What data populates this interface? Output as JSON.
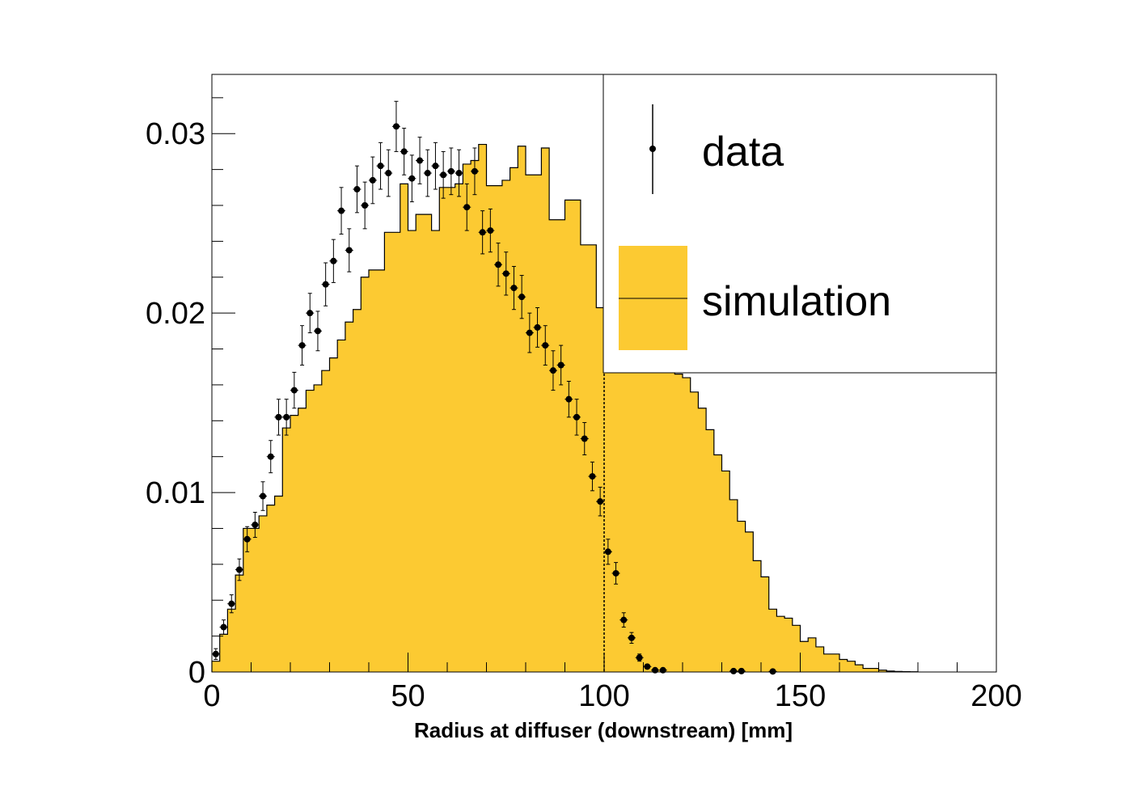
{
  "chart_data": {
    "type": "histogram",
    "xlabel": "Radius at diffuser (downstream) [mm]",
    "ylabel": "",
    "xlim": [
      0,
      200
    ],
    "ylim": [
      0,
      0.0333
    ],
    "x_ticks": [
      0,
      50,
      100,
      150,
      200
    ],
    "y_ticks": [
      0,
      0.01,
      0.02,
      0.03
    ],
    "x_tick_labels": [
      "0",
      "50",
      "100",
      "150",
      "200"
    ],
    "y_tick_labels": [
      "0",
      "0.01",
      "0.02",
      "0.03"
    ],
    "bin_width": 2,
    "cut_line_x": 100,
    "legend": {
      "position": "top-right",
      "data_label": "data",
      "sim_label": "simulation"
    },
    "colors": {
      "simulation_fill": "#fcca32",
      "simulation_line": "#000000",
      "data_marker": "#000000"
    },
    "series": [
      {
        "name": "simulation",
        "style": "filled-step",
        "x_edges_start": 0,
        "values": [
          0.0006,
          0.0021,
          0.0035,
          0.0054,
          0.008,
          0.008,
          0.0087,
          0.0093,
          0.0098,
          0.0136,
          0.0143,
          0.0147,
          0.0157,
          0.016,
          0.0168,
          0.0175,
          0.0185,
          0.0195,
          0.0202,
          0.022,
          0.0224,
          0.0224,
          0.0245,
          0.0245,
          0.0272,
          0.0246,
          0.0255,
          0.0255,
          0.0246,
          0.027,
          0.027,
          0.0272,
          0.0283,
          0.0285,
          0.0294,
          0.0271,
          0.0271,
          0.0274,
          0.0281,
          0.0293,
          0.0277,
          0.0277,
          0.0292,
          0.0252,
          0.0252,
          0.0263,
          0.0263,
          0.0238,
          0.0238,
          0.0203,
          0.0224,
          0.0224,
          0.0232,
          0.0201,
          0.0201,
          0.0191,
          0.0187,
          0.0184,
          0.0184,
          0.0166,
          0.0164,
          0.0156,
          0.0147,
          0.0135,
          0.0121,
          0.0112,
          0.0096,
          0.0084,
          0.0078,
          0.0062,
          0.0053,
          0.0035,
          0.0031,
          0.003,
          0.0026,
          0.0017,
          0.0019,
          0.0014,
          0.001,
          0.001,
          0.0007,
          0.0006,
          0.0004,
          0.0002,
          0.0002,
          0.0001,
          5e-05,
          3e-05,
          2e-05,
          1e-05
        ]
      },
      {
        "name": "data",
        "style": "points-with-errors",
        "x": [
          1,
          3,
          5,
          7,
          9,
          11,
          13,
          15,
          17,
          19,
          21,
          23,
          25,
          27,
          29,
          31,
          33,
          35,
          37,
          39,
          41,
          43,
          45,
          47,
          49,
          51,
          53,
          55,
          57,
          59,
          61,
          63,
          65,
          67,
          69,
          71,
          73,
          75,
          77,
          79,
          81,
          83,
          85,
          87,
          89,
          91,
          93,
          95,
          97,
          99,
          101,
          103,
          105,
          107,
          109,
          111,
          113,
          115,
          133,
          135,
          143
        ],
        "y": [
          0.001,
          0.0025,
          0.0038,
          0.0057,
          0.0074,
          0.0082,
          0.0098,
          0.012,
          0.0142,
          0.0142,
          0.0157,
          0.0182,
          0.02,
          0.019,
          0.0216,
          0.0229,
          0.0257,
          0.0235,
          0.0269,
          0.026,
          0.0274,
          0.0282,
          0.0278,
          0.0304,
          0.029,
          0.0275,
          0.0285,
          0.0278,
          0.0282,
          0.0277,
          0.0279,
          0.0278,
          0.0259,
          0.0279,
          0.0245,
          0.0246,
          0.0227,
          0.0222,
          0.0214,
          0.0209,
          0.0189,
          0.0192,
          0.0182,
          0.0168,
          0.0171,
          0.0152,
          0.0142,
          0.013,
          0.0109,
          0.0095,
          0.0067,
          0.0055,
          0.0029,
          0.0019,
          0.0008,
          0.0003,
          0.0001,
          0.0001,
          5e-05,
          5e-05,
          3e-05
        ],
        "yerr": [
          0.0003,
          0.0004,
          0.0005,
          0.0006,
          0.0007,
          0.0007,
          0.0008,
          0.0009,
          0.001,
          0.001,
          0.001,
          0.0011,
          0.0011,
          0.0011,
          0.0012,
          0.0012,
          0.0013,
          0.0012,
          0.0013,
          0.0013,
          0.0013,
          0.0013,
          0.0013,
          0.0014,
          0.0013,
          0.0013,
          0.0013,
          0.0013,
          0.0013,
          0.0013,
          0.0013,
          0.0013,
          0.0013,
          0.0013,
          0.0012,
          0.0012,
          0.0012,
          0.0012,
          0.0012,
          0.0012,
          0.0011,
          0.0011,
          0.0011,
          0.0011,
          0.0011,
          0.001,
          0.001,
          0.0009,
          0.0008,
          0.0008,
          0.0007,
          0.0006,
          0.0004,
          0.0003,
          0.0002,
          0.0001,
          0.0001,
          0.0001,
          5e-05,
          5e-05,
          5e-05
        ]
      }
    ]
  }
}
